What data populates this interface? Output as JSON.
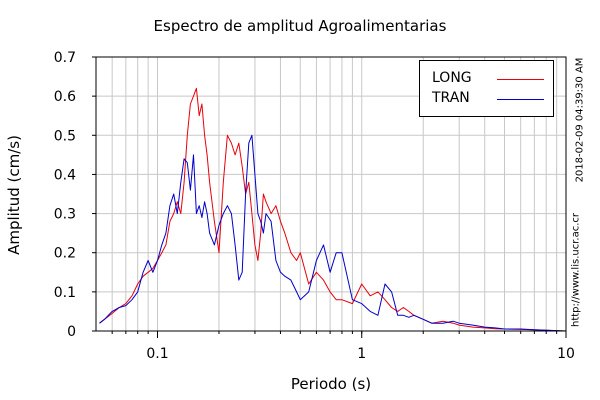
{
  "chart_data": {
    "type": "line",
    "title": "Espectro de amplitud Agroalimentarias",
    "xlabel": "Periodo (s)",
    "ylabel": "Amplitud (cm/s)",
    "x_scale": "log",
    "xlim": [
      0.05,
      10
    ],
    "ylim": [
      0,
      0.7
    ],
    "x_ticks": [
      0.1,
      1,
      10
    ],
    "x_tick_labels": [
      "0.1",
      "1",
      "10"
    ],
    "y_ticks": [
      0,
      0.1,
      0.2,
      0.3,
      0.4,
      0.5,
      0.6,
      0.7
    ],
    "y_tick_labels": [
      "0",
      "0.1",
      "0.2",
      "0.3",
      "0.4",
      "0.5",
      "0.6",
      "0.7"
    ],
    "grid": true,
    "legend_position": "top-right",
    "series": [
      {
        "name": "LONG",
        "color": "#e8000b",
        "x": [
          0.052,
          0.055,
          0.06,
          0.065,
          0.07,
          0.075,
          0.08,
          0.085,
          0.09,
          0.095,
          0.1,
          0.105,
          0.11,
          0.115,
          0.12,
          0.125,
          0.13,
          0.135,
          0.14,
          0.145,
          0.15,
          0.155,
          0.16,
          0.165,
          0.17,
          0.175,
          0.18,
          0.19,
          0.2,
          0.21,
          0.22,
          0.23,
          0.24,
          0.25,
          0.26,
          0.27,
          0.28,
          0.29,
          0.3,
          0.31,
          0.32,
          0.33,
          0.34,
          0.36,
          0.38,
          0.4,
          0.42,
          0.45,
          0.48,
          0.5,
          0.55,
          0.6,
          0.65,
          0.7,
          0.75,
          0.8,
          0.9,
          1.0,
          1.1,
          1.2,
          1.3,
          1.4,
          1.5,
          1.6,
          1.7,
          1.8,
          2.0,
          2.2,
          2.5,
          2.8,
          3.0,
          3.5,
          4.0,
          4.5,
          5.0,
          6.0,
          7.0,
          8.0,
          9.0,
          10.0
        ],
        "values": [
          0.02,
          0.03,
          0.045,
          0.06,
          0.07,
          0.09,
          0.12,
          0.14,
          0.15,
          0.16,
          0.18,
          0.2,
          0.22,
          0.28,
          0.3,
          0.33,
          0.3,
          0.38,
          0.5,
          0.58,
          0.6,
          0.62,
          0.55,
          0.58,
          0.5,
          0.45,
          0.38,
          0.28,
          0.2,
          0.38,
          0.5,
          0.48,
          0.45,
          0.48,
          0.42,
          0.35,
          0.38,
          0.3,
          0.22,
          0.18,
          0.25,
          0.35,
          0.33,
          0.3,
          0.32,
          0.28,
          0.25,
          0.2,
          0.18,
          0.2,
          0.12,
          0.15,
          0.13,
          0.1,
          0.08,
          0.08,
          0.07,
          0.12,
          0.09,
          0.1,
          0.08,
          0.06,
          0.05,
          0.06,
          0.05,
          0.04,
          0.03,
          0.02,
          0.025,
          0.02,
          0.015,
          0.01,
          0.008,
          0.006,
          0.005,
          0.004,
          0.003,
          0.002,
          0.001,
          0.0
        ]
      },
      {
        "name": "TRAN",
        "color": "#0000cc",
        "x": [
          0.052,
          0.055,
          0.06,
          0.065,
          0.07,
          0.075,
          0.08,
          0.085,
          0.09,
          0.095,
          0.1,
          0.105,
          0.11,
          0.115,
          0.12,
          0.125,
          0.13,
          0.135,
          0.14,
          0.145,
          0.15,
          0.155,
          0.16,
          0.165,
          0.17,
          0.175,
          0.18,
          0.19,
          0.2,
          0.21,
          0.22,
          0.23,
          0.24,
          0.25,
          0.26,
          0.27,
          0.28,
          0.29,
          0.3,
          0.31,
          0.32,
          0.33,
          0.34,
          0.36,
          0.38,
          0.4,
          0.42,
          0.45,
          0.48,
          0.5,
          0.55,
          0.6,
          0.65,
          0.7,
          0.75,
          0.8,
          0.9,
          1.0,
          1.1,
          1.2,
          1.3,
          1.4,
          1.5,
          1.6,
          1.7,
          1.8,
          2.0,
          2.2,
          2.5,
          2.8,
          3.0,
          3.5,
          4.0,
          4.5,
          5.0,
          6.0,
          7.0,
          8.0,
          9.0,
          10.0
        ],
        "values": [
          0.02,
          0.03,
          0.05,
          0.06,
          0.065,
          0.08,
          0.1,
          0.15,
          0.18,
          0.15,
          0.18,
          0.22,
          0.25,
          0.32,
          0.35,
          0.3,
          0.38,
          0.44,
          0.43,
          0.36,
          0.45,
          0.3,
          0.32,
          0.29,
          0.33,
          0.3,
          0.25,
          0.22,
          0.27,
          0.3,
          0.32,
          0.3,
          0.22,
          0.13,
          0.15,
          0.35,
          0.48,
          0.5,
          0.4,
          0.3,
          0.28,
          0.25,
          0.3,
          0.28,
          0.18,
          0.15,
          0.14,
          0.13,
          0.1,
          0.08,
          0.1,
          0.18,
          0.22,
          0.15,
          0.2,
          0.2,
          0.08,
          0.07,
          0.05,
          0.04,
          0.12,
          0.1,
          0.04,
          0.04,
          0.035,
          0.04,
          0.03,
          0.02,
          0.02,
          0.025,
          0.02,
          0.015,
          0.01,
          0.008,
          0.005,
          0.005,
          0.003,
          0.002,
          0.001,
          0.0
        ]
      }
    ]
  },
  "timestamp": "2018-02-09 04:39:30 AM",
  "source_url": "http://www.lis.ucr.ac.cr"
}
